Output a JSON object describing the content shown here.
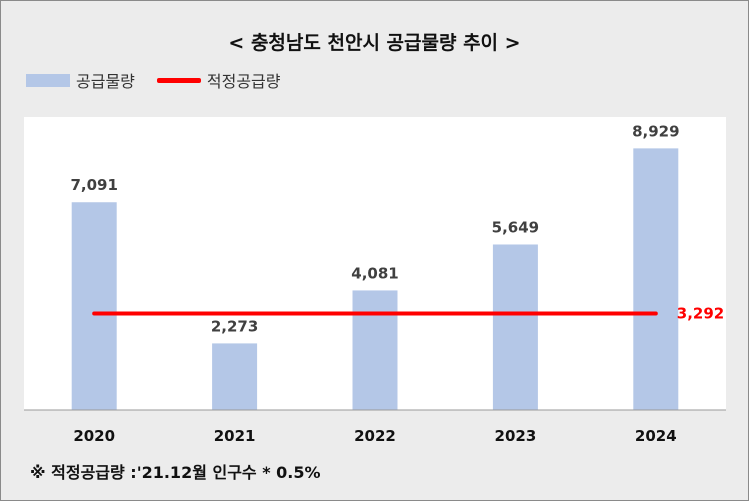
{
  "chart_data": {
    "type": "bar",
    "title": "< 충청남도 천안시 공급물량 추이 >",
    "categories": [
      "2020",
      "2021",
      "2022",
      "2023",
      "2024"
    ],
    "series": [
      {
        "name": "공급물량",
        "values": [
          7091,
          2273,
          4081,
          5649,
          8929
        ],
        "labels": [
          "7,091",
          "2,273",
          "4,081",
          "5,649",
          "8,929"
        ],
        "color": "#b4c7e7"
      }
    ],
    "reference_line": {
      "name": "적정공급량",
      "value": 3292,
      "label": "3,292",
      "color": "#ff0000"
    },
    "ylim": [
      0,
      10000
    ],
    "grid": false,
    "legend_position": "top-left"
  },
  "footnote": "※ 적정공급량 :'21.12월 인구수 * 0.5%"
}
